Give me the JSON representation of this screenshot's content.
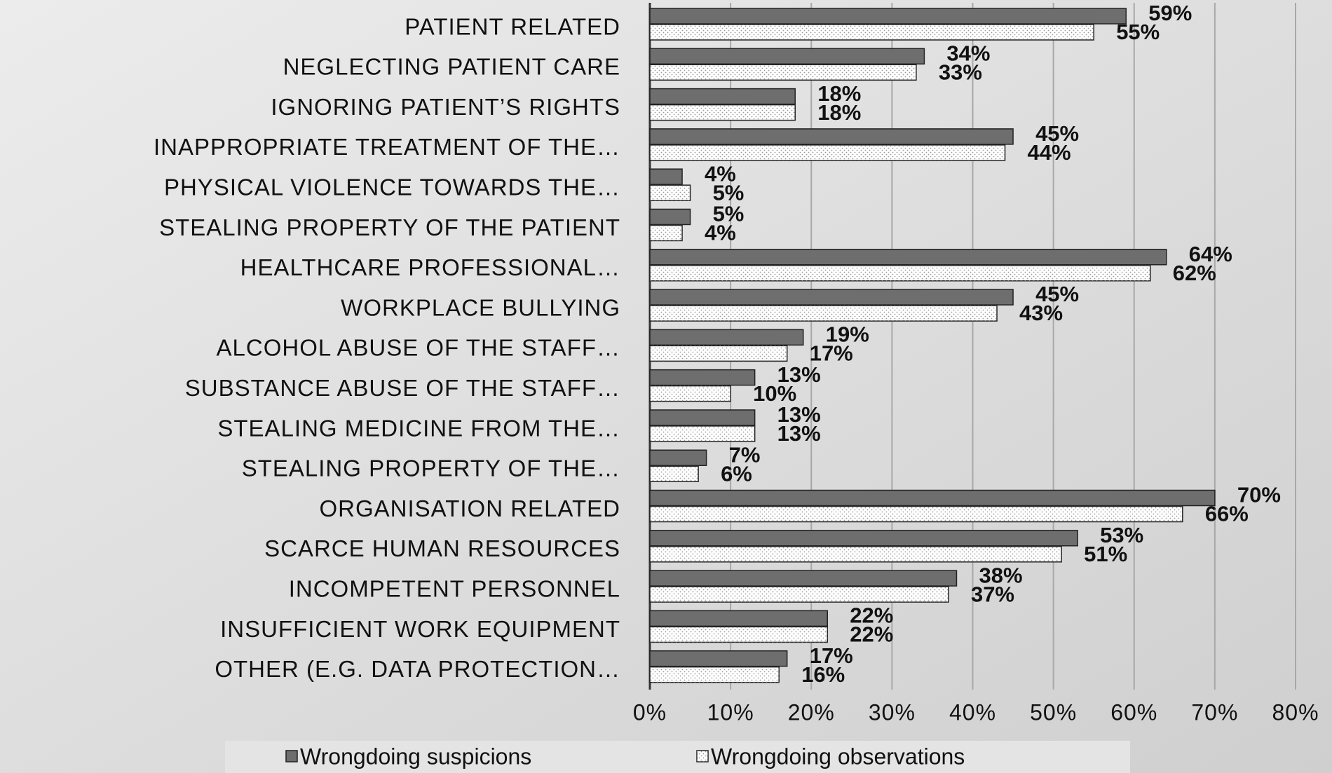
{
  "chart_data": {
    "type": "bar",
    "orientation": "horizontal",
    "categories": [
      "PATIENT RELATED",
      "NEGLECTING PATIENT CARE",
      "IGNORING PATIENT’S RIGHTS",
      "INAPPROPRIATE TREATMENT OF THE…",
      "PHYSICAL VIOLENCE TOWARDS THE…",
      "STEALING PROPERTY OF THE PATIENT",
      "HEALTHCARE PROFESSIONAL…",
      "WORKPLACE BULLYING",
      "ALCOHOL ABUSE OF THE STAFF…",
      "SUBSTANCE ABUSE OF THE STAFF…",
      "STEALING MEDICINE FROM THE…",
      "STEALING PROPERTY OF THE…",
      "ORGANISATION RELATED",
      "SCARCE HUMAN RESOURCES",
      "INCOMPETENT PERSONNEL",
      "INSUFFICIENT WORK EQUIPMENT",
      "OTHER (E.G. DATA PROTECTION…"
    ],
    "series": [
      {
        "name": "Wrongdoing suspicions",
        "color": "#6e6e6e",
        "values": [
          59,
          34,
          18,
          45,
          4,
          5,
          64,
          45,
          19,
          13,
          13,
          7,
          70,
          53,
          38,
          22,
          17
        ],
        "value_labels": [
          "59%",
          "34%",
          "18%",
          "45%",
          "4%",
          "5%",
          "64%",
          "45%",
          "19%",
          "13%",
          "13%",
          "7%",
          "70%",
          "53%",
          "38%",
          "22%",
          "17%"
        ]
      },
      {
        "name": "Wrongdoing observations",
        "color": "#ffffff",
        "values": [
          55,
          33,
          18,
          44,
          5,
          4,
          62,
          43,
          17,
          10,
          13,
          6,
          66,
          51,
          37,
          22,
          16
        ],
        "value_labels": [
          "55%",
          "33%",
          "18%",
          "44%",
          "5%",
          "4%",
          "62%",
          "43%",
          "17%",
          "10%",
          "13%",
          "6%",
          "66%",
          "51%",
          "37%",
          "22%",
          "16%"
        ]
      }
    ],
    "xlim": [
      0,
      80
    ],
    "xticks": [
      {
        "value": 0,
        "label": "0%"
      },
      {
        "value": 10,
        "label": "10%"
      },
      {
        "value": 20,
        "label": "20%"
      },
      {
        "value": 30,
        "label": "30%"
      },
      {
        "value": 40,
        "label": "40%"
      },
      {
        "value": 50,
        "label": "50%"
      },
      {
        "value": 60,
        "label": "60%"
      },
      {
        "value": 70,
        "label": "70%"
      },
      {
        "value": 80,
        "label": "80%"
      }
    ],
    "grid": true,
    "legend": "bottom"
  }
}
